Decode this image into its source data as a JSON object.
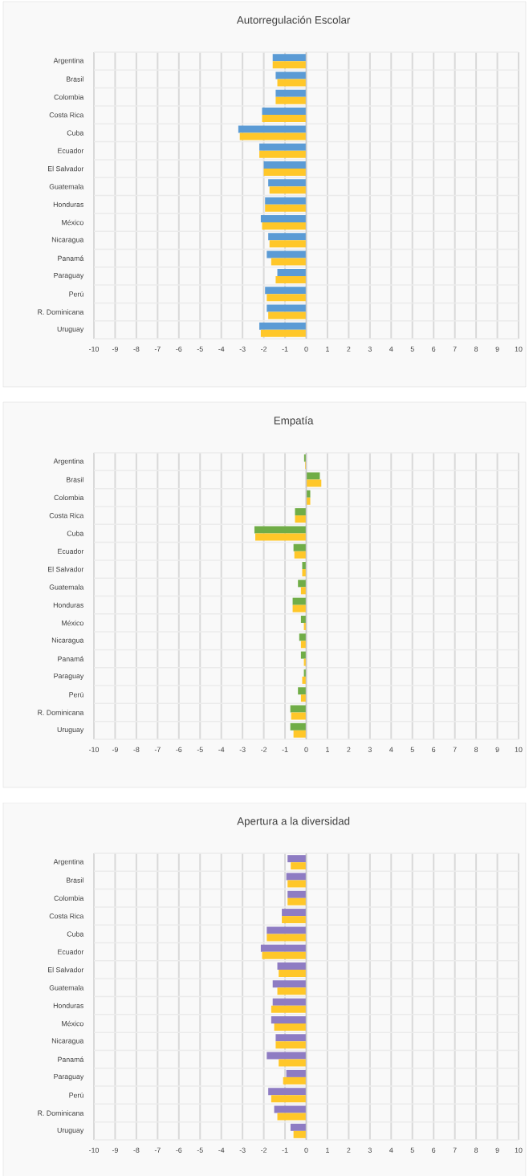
{
  "chart_data": [
    {
      "type": "bar",
      "orientation": "horizontal",
      "title": "Autorregulación Escolar",
      "categories": [
        "Argentina",
        "Brasil",
        "Colombia",
        "Costa Rica",
        "Cuba",
        "Ecuador",
        "El Salvador",
        "Guatemala",
        "Honduras",
        "México",
        "Nicaragua",
        "Panamá",
        "Paraguay",
        "Perú",
        "R. Dominicana",
        "Uruguay"
      ],
      "series": [
        {
          "color": "#5b9bd5",
          "values": [
            -1.58,
            -1.44,
            -1.44,
            -2.08,
            -3.2,
            -2.21,
            -2.0,
            -1.79,
            -1.94,
            -2.14,
            -1.79,
            -1.86,
            -1.36,
            -1.94,
            -1.86,
            -2.21
          ]
        },
        {
          "color": "#ffc729",
          "values": [
            -1.58,
            -1.36,
            -1.44,
            -2.08,
            -3.13,
            -2.21,
            -2.0,
            -1.73,
            -1.94,
            -2.08,
            -1.73,
            -1.65,
            -1.44,
            -1.86,
            -1.79,
            -2.14
          ]
        }
      ],
      "xlim": [
        -10,
        10
      ],
      "xticks": [
        -10,
        -9,
        -8,
        -7,
        -6,
        -5,
        -4,
        -3,
        -2,
        -1,
        0,
        1,
        2,
        3,
        4,
        5,
        6,
        7,
        8,
        9,
        10
      ],
      "grid": true
    },
    {
      "type": "bar",
      "orientation": "horizontal",
      "title": "Empatía",
      "categories": [
        "Argentina",
        "Brasil",
        "Colombia",
        "Costa Rica",
        "Cuba",
        "Ecuador",
        "El Salvador",
        "Guatemala",
        "Honduras",
        "México",
        "Nicaragua",
        "Panamá",
        "Paraguay",
        "Perú",
        "R. Dominicana",
        "Uruguay"
      ],
      "series": [
        {
          "color": "#70ad47",
          "values": [
            -0.1,
            0.64,
            0.19,
            -0.53,
            -2.44,
            -0.6,
            -0.19,
            -0.39,
            -0.64,
            -0.25,
            -0.33,
            -0.25,
            -0.11,
            -0.39,
            -0.75,
            -0.75
          ]
        },
        {
          "color": "#ffc729",
          "values": [
            -0.05,
            0.71,
            0.19,
            -0.53,
            -2.4,
            -0.56,
            -0.19,
            -0.25,
            -0.64,
            -0.11,
            -0.25,
            -0.11,
            -0.19,
            -0.25,
            -0.71,
            -0.6
          ]
        }
      ],
      "xlim": [
        -10,
        10
      ],
      "xticks": [
        -10,
        -9,
        -8,
        -7,
        -6,
        -5,
        -4,
        -3,
        -2,
        -1,
        0,
        1,
        2,
        3,
        4,
        5,
        6,
        7,
        8,
        9,
        10
      ],
      "grid": true
    },
    {
      "type": "bar",
      "orientation": "horizontal",
      "title": "Apertura a la diversidad",
      "categories": [
        "Argentina",
        "Brasil",
        "Colombia",
        "Costa Rica",
        "Cuba",
        "Ecuador",
        "El Salvador",
        "Guatemala",
        "Honduras",
        "México",
        "Nicaragua",
        "Panamá",
        "Paraguay",
        "Perú",
        "R. Dominicana",
        "Uruguay"
      ],
      "series": [
        {
          "color": "#8e7cc3",
          "values": [
            -0.88,
            -0.94,
            -0.88,
            -1.15,
            -1.86,
            -2.14,
            -1.36,
            -1.58,
            -1.58,
            -1.65,
            -1.44,
            -1.86,
            -0.94,
            -1.79,
            -1.51,
            -0.74
          ]
        },
        {
          "color": "#ffc729",
          "values": [
            -0.73,
            -0.88,
            -0.88,
            -1.15,
            -1.86,
            -2.08,
            -1.3,
            -1.36,
            -1.65,
            -1.51,
            -1.44,
            -1.3,
            -1.09,
            -1.65,
            -1.36,
            -0.6
          ]
        }
      ],
      "xlim": [
        -10,
        10
      ],
      "xticks": [
        -10,
        -9,
        -8,
        -7,
        -6,
        -5,
        -4,
        -3,
        -2,
        -1,
        0,
        1,
        2,
        3,
        4,
        5,
        6,
        7,
        8,
        9,
        10
      ],
      "grid": true
    }
  ]
}
